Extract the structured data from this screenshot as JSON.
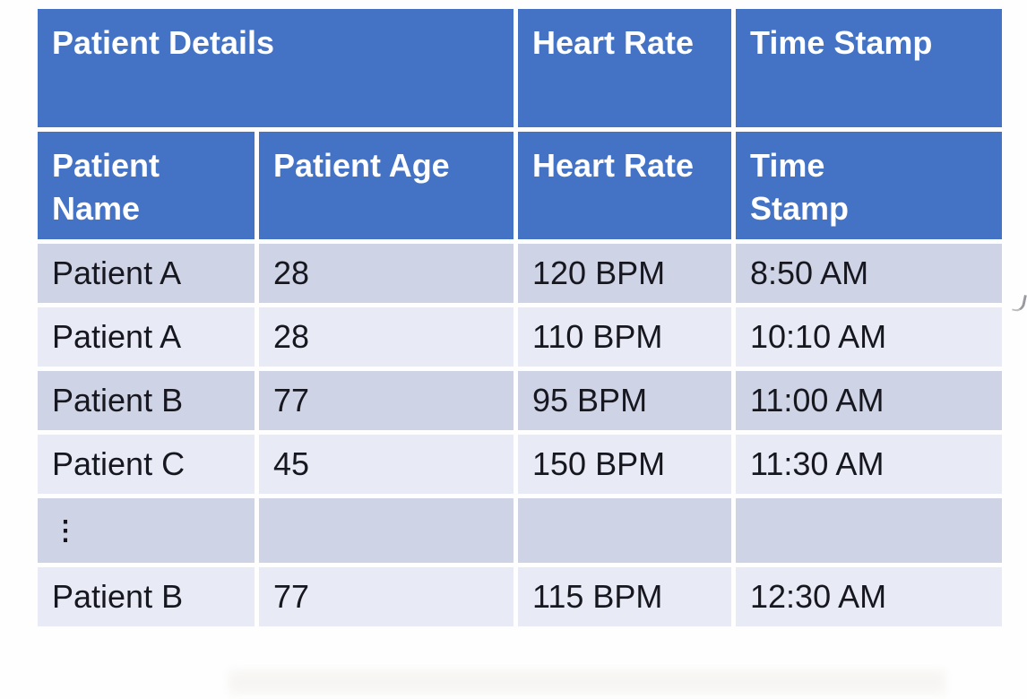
{
  "table": {
    "title_semantic": "patient-heart-rate-table",
    "header_row1": [
      {
        "label": "Patient Details",
        "span": 2
      },
      {
        "label": "Heart Rate",
        "span": 1
      },
      {
        "label": "Time Stamp",
        "span": 1
      }
    ],
    "header_row2": [
      "Patient\nName",
      "Patient Age",
      "Heart Rate",
      "Time\nStamp"
    ],
    "rows": [
      {
        "cells": [
          "Patient A",
          "28",
          "120 BPM",
          "8:50 AM"
        ]
      },
      {
        "cells": [
          "Patient A",
          "28",
          "110 BPM",
          "10:10 AM"
        ]
      },
      {
        "cells": [
          "Patient B",
          "77",
          "95 BPM",
          "11:00 AM"
        ]
      },
      {
        "cells": [
          "Patient C",
          "45",
          "150 BPM",
          "11:30 AM"
        ]
      },
      {
        "cells": [
          "⋮",
          "",
          "",
          ""
        ]
      },
      {
        "cells": [
          "Patient B",
          "77",
          "115 BPM",
          "12:30 AM"
        ]
      }
    ],
    "colors": {
      "header_bg": "#4472c4",
      "header_text": "#ffffff",
      "band_dark": "#cfd3e6",
      "band_light": "#e8eaf5",
      "body_text": "#17171f",
      "page_bg": "#ffffff"
    }
  }
}
